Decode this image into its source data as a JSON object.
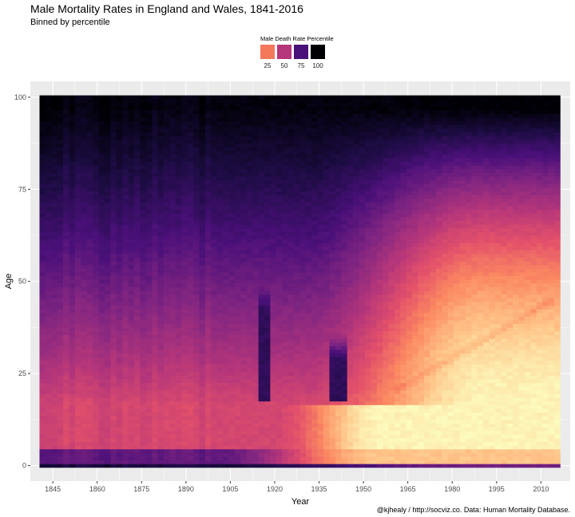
{
  "title": "Male Mortality Rates in England and Wales, 1841-2016",
  "subtitle": "Binned by percentile",
  "caption": "@kjhealy / http://socviz.co. Data: Human Mortality Database.",
  "legend": {
    "title": "Male Death Rate Percentile",
    "items": [
      {
        "label": "25",
        "color": "#f4795b"
      },
      {
        "label": "50",
        "color": "#b5367a"
      },
      {
        "label": "75",
        "color": "#4a1079"
      },
      {
        "label": "100",
        "color": "#000004"
      }
    ]
  },
  "colors": {
    "panel_bg": "#ebebeb",
    "grid": "#ffffff",
    "palette": [
      "#fcfdbf",
      "#fec287",
      "#fb8861",
      "#e3506a",
      "#b5367a",
      "#812581",
      "#4a1079",
      "#1b0c41",
      "#000004"
    ]
  },
  "chart_data": {
    "type": "heatmap",
    "title": "Male Mortality Rates in England and Wales, 1841-2016",
    "subtitle": "Binned by percentile",
    "xlabel": "Year",
    "ylabel": "Age",
    "xlim": [
      1841,
      2016
    ],
    "ylim": [
      0,
      100
    ],
    "x_ticks": [
      1845,
      1860,
      1875,
      1890,
      1905,
      1920,
      1935,
      1950,
      1965,
      1980,
      1995,
      2010
    ],
    "y_ticks": [
      0,
      25,
      50,
      75,
      100
    ],
    "grid": true,
    "legend_position": "top",
    "fill": "Male Death Rate Percentile",
    "scale": "magma, binned by percentile",
    "features": [
      {
        "label": "",
        "x_range": [
          1914,
          1918
        ],
        "y_range": [
          18,
          50
        ]
      },
      {
        "label": "",
        "x_range": [
          1939,
          1945
        ],
        "y_range": [
          18,
          37
        ]
      }
    ]
  }
}
